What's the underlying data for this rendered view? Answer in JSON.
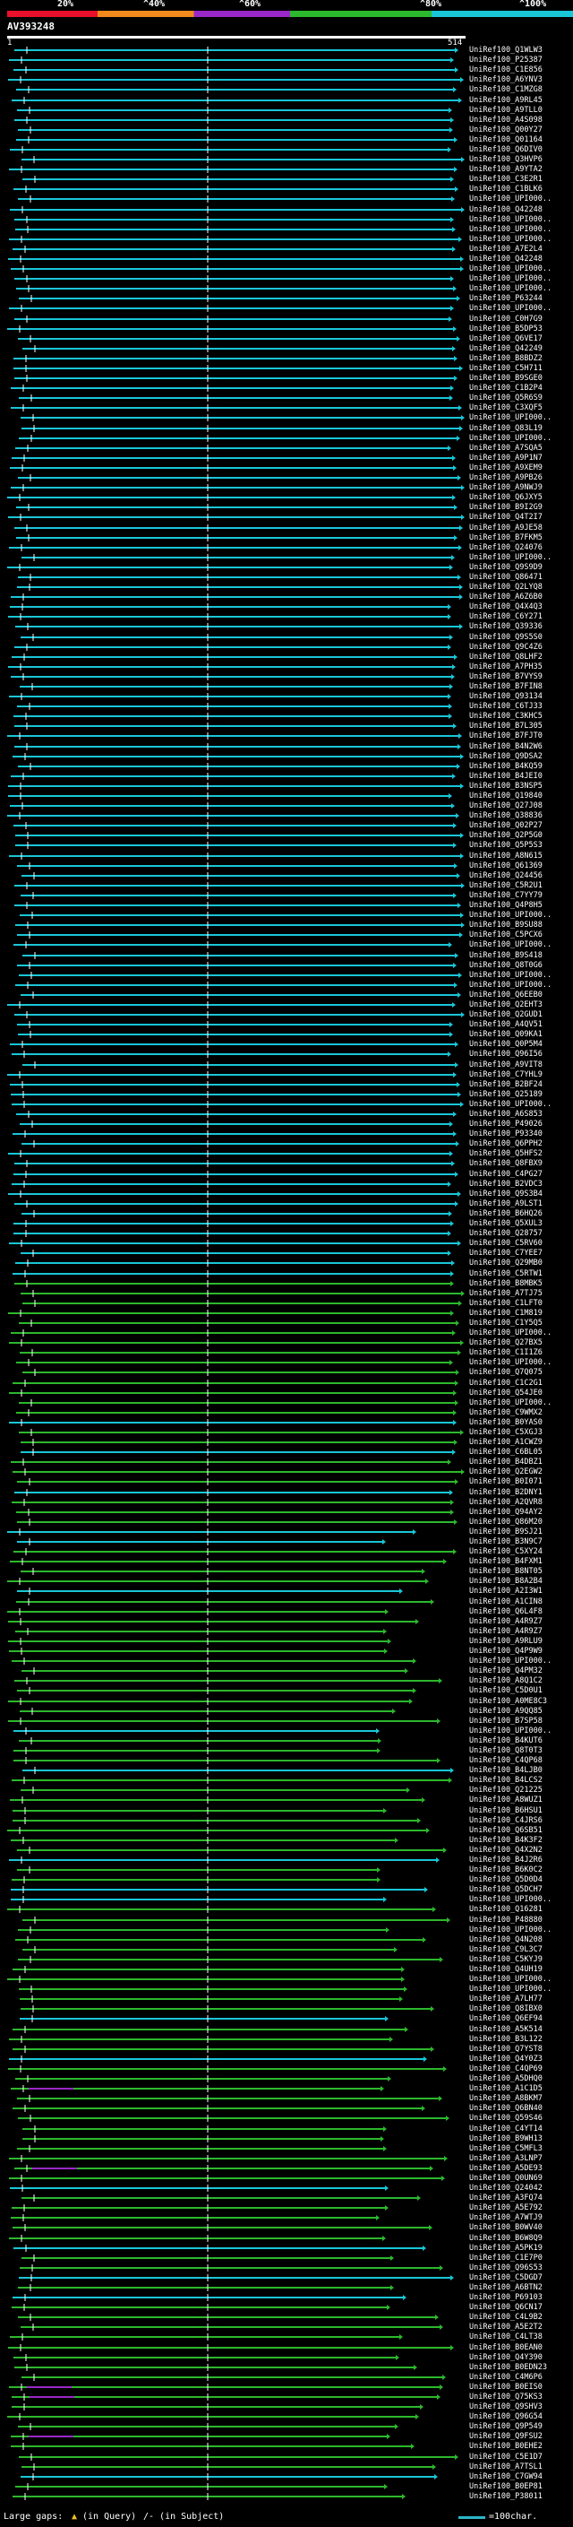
{
  "header": {
    "scale_labels": [
      "20%",
      "^40%",
      "^60%",
      "^80%",
      "^100%"
    ],
    "query_title": "AV393248",
    "ruler_start": "1",
    "ruler_end": "514",
    "colors": {
      "red": "#e8102a",
      "orange": "#f08a1c",
      "purple": "#9a28c8",
      "green": "#2cb82c",
      "cyan": "#19c6d8"
    }
  },
  "hits": [
    "UniRef100_Q1WLW3",
    "UniRef100_P25387",
    "UniRef100_C1E856",
    "UniRef100_A6YNV3",
    "UniRef100_C1MZG8",
    "UniRef100_A9RL45",
    "UniRef100_A9TLL0",
    "UniRef100_A4S098",
    "UniRef100_Q00Y27",
    "UniRef100_Q01164",
    "UniRef100_Q6DIV0",
    "UniRef100_Q3HVP6",
    "UniRef100_A9YTA2",
    "UniRef100_C3E2R1",
    "UniRef100_C1BLK6",
    "UniRef100_UPI000..",
    "UniRef100_Q42248",
    "UniRef100_UPI000..",
    "UniRef100_UPI000..",
    "UniRef100_UPI000..",
    "UniRef100_A7E2L4",
    "UniRef100_Q42248",
    "UniRef100_UPI000..",
    "UniRef100_UPI000..",
    "UniRef100_UPI000..",
    "UniRef100_P63244",
    "UniRef100_UPI000..",
    "UniRef100_C0H7G9",
    "UniRef100_B5DP53",
    "UniRef100_Q6VE17",
    "UniRef100_Q42249",
    "UniRef100_B8BDZ2",
    "UniRef100_C5H711",
    "UniRef100_B9SGE0",
    "UniRef100_C1B2P4",
    "UniRef100_Q5R6S9",
    "UniRef100_C3XQF5",
    "UniRef100_UPI000..",
    "UniRef100_Q83L19",
    "UniRef100_UPI000..",
    "UniRef100_A7SQA5",
    "UniRef100_A9P1N7",
    "UniRef100_A9XEM9",
    "UniRef100_A9PB26",
    "UniRef100_A9NWJ9",
    "UniRef100_Q6JXY5",
    "UniRef100_B9I2G9",
    "UniRef100_Q4T2I7",
    "UniRef100_A9JE58",
    "UniRef100_B7FKM5",
    "UniRef100_Q24076",
    "UniRef100_UPI000..",
    "UniRef100_Q9S9D9",
    "UniRef100_Q86471",
    "UniRef100_Q2LYQ8",
    "UniRef100_A6Z6B0",
    "UniRef100_Q4X4Q3",
    "UniRef100_C6Y271",
    "UniRef100_Q39336",
    "UniRef100_Q9S5S0",
    "UniRef100_Q9C4Z6",
    "UniRef100_Q8LHF2",
    "UniRef100_A7PH35",
    "UniRef100_B7VYS9",
    "UniRef100_B7FIN8",
    "UniRef100_Q93134",
    "UniRef100_C6TJ33",
    "UniRef100_C3KHC5",
    "UniRef100_B7L305",
    "UniRef100_B7FJT0",
    "UniRef100_B4N2W6",
    "UniRef100_Q9DSA2",
    "UniRef100_B4KQ59",
    "UniRef100_B4JEI0",
    "UniRef100_B3NSP5",
    "UniRef100_Q19840",
    "UniRef100_Q27J08",
    "UniRef100_Q38836",
    "UniRef100_Q02P27",
    "UniRef100_Q2P5G0",
    "UniRef100_Q5P5S3",
    "UniRef100_A8N615",
    "UniRef100_Q61369",
    "UniRef100_Q24456",
    "UniRef100_C5R2U1",
    "UniRef100_C7YY79",
    "UniRef100_Q4P8H5",
    "UniRef100_UPI000..",
    "UniRef100_B9SU88",
    "UniRef100_C5PCX6",
    "UniRef100_UPI000..",
    "UniRef100_B9S418",
    "UniRef100_Q8T0G6",
    "UniRef100_UPI000..",
    "UniRef100_UPI000..",
    "UniRef100_Q6EEB0",
    "UniRef100_Q2EHT3",
    "UniRef100_Q2GUD1",
    "UniRef100_A4QV51",
    "UniRef100_Q09KA1",
    "UniRef100_Q0P5M4",
    "UniRef100_Q96I56",
    "UniRef100_A9VIT8",
    "UniRef100_C7YHL9",
    "UniRef100_B2BF24",
    "UniRef100_Q25189",
    "UniRef100_UPI000..",
    "UniRef100_A6S853",
    "UniRef100_P49026",
    "UniRef100_P93340",
    "UniRef100_Q6PPH2",
    "UniRef100_Q5HFS2",
    "UniRef100_Q8FBX9",
    "UniRef100_C4PG27",
    "UniRef100_B2VDC3",
    "UniRef100_Q9S3B4",
    "UniRef100_A9LST1",
    "UniRef100_B6HQ26",
    "UniRef100_Q5XUL3",
    "UniRef100_Q28757",
    "UniRef100_C5RV60",
    "UniRef100_C7YEE7",
    "UniRef100_Q29MB0",
    "UniRef100_C5RTW1",
    "UniRef100_B8MBK5",
    "UniRef100_A7TJ75",
    "UniRef100_C1LFT0",
    "UniRef100_C1M819",
    "UniRef100_C1Y5Q5",
    "UniRef100_UPI000..",
    "UniRef100_Q27BX5",
    "UniRef100_C1I1Z6",
    "UniRef100_UPI000..",
    "UniRef100_Q7Q075",
    "UniRef100_C1C2G1",
    "UniRef100_Q54JE0",
    "UniRef100_UPI000..",
    "UniRef100_C9WMX2",
    "UniRef100_B0YAS0",
    "UniRef100_C5XGJ3",
    "UniRef100_A1CWZ9",
    "UniRef100_C6BL05",
    "UniRef100_B4DBZ1",
    "UniRef100_Q2EGW2",
    "UniRef100_B0I071",
    "UniRef100_B2DNY1",
    "UniRef100_A2QVR8",
    "UniRef100_Q94AY2",
    "UniRef100_Q86M20",
    "UniRef100_B9SJ21",
    "UniRef100_B3N9C7",
    "UniRef100_C5XY24",
    "UniRef100_B4FXM1",
    "UniRef100_B8NT05",
    "UniRef100_B8A2B4",
    "UniRef100_A2I3W1",
    "UniRef100_A1CIN8",
    "UniRef100_Q6L4F8",
    "UniRef100_A4R9Z7",
    "UniRef100_A4R9Z7",
    "UniRef100_A9RLU9",
    "UniRef100_Q4P9W9",
    "UniRef100_UPI000..",
    "UniRef100_Q4PM32",
    "UniRef100_A8Q1C2",
    "UniRef100_C5D0U1",
    "UniRef100_A0ME8C3",
    "UniRef100_A9QQ85",
    "UniRef100_B7SP58",
    "UniRef100_UPI000..",
    "UniRef100_B4KUT6",
    "UniRef100_Q8T0T3",
    "UniRef100_C4QP68",
    "UniRef100_B4LJB0",
    "UniRef100_B4LCS2",
    "UniRef100_Q21225",
    "UniRef100_A8WUZ1",
    "UniRef100_B6HSU1",
    "UniRef100_C4JRS6",
    "UniRef100_Q6SB51",
    "UniRef100_B4K3F2",
    "UniRef100_Q4X2N2",
    "UniRef100_B4J2R6",
    "UniRef100_B6K0C2",
    "UniRef100_Q5D0D4",
    "UniRef100_Q5DCH7",
    "UniRef100_UPI000..",
    "UniRef100_Q16281",
    "UniRef100_P48880",
    "UniRef100_UPI000..",
    "UniRef100_Q4N208",
    "UniRef100_C9L3C7",
    "UniRef100_C5KYJ9",
    "UniRef100_Q4UH19",
    "UniRef100_UPI000..",
    "UniRef100_UPI000..",
    "UniRef100_A7LH77",
    "UniRef100_Q8IBX0",
    "UniRef100_Q6EF94",
    "UniRef100_A5K514",
    "UniRef100_B3L122",
    "UniRef100_Q7YST8",
    "UniRef100_Q4Y0Z3",
    "UniRef100_C4QP69",
    "UniRef100_A5DHQ0",
    "UniRef100_A1C1D5",
    "UniRef100_A8BKM7",
    "UniRef100_Q6BN40",
    "UniRef100_Q59S46",
    "UniRef100_C4YT14",
    "UniRef100_B9WH13",
    "UniRef100_C5MFL3",
    "UniRef100_A3LNP7",
    "UniRef100_A5DE93",
    "UniRef100_Q0UN69",
    "UniRef100_Q24042",
    "UniRef100_A3FQ74",
    "UniRef100_A5E792",
    "UniRef100_A7WTJ9",
    "UniRef100_B0WV40",
    "UniRef100_B6W8Q9",
    "UniRef100_A5PK19",
    "UniRef100_C1E7P0",
    "UniRef100_Q96S53",
    "UniRef100_C5DGD7",
    "UniRef100_A6BTN2",
    "UniRef100_P69103",
    "UniRef100_Q6CN17",
    "UniRef100_C4L9B2",
    "UniRef100_A5E2T2",
    "UniRef100_C4LT38",
    "UniRef100_B0EAN0",
    "UniRef100_Q4Y390",
    "UniRef100_B0EDN23",
    "UniRef100_C4M6P6",
    "UniRef100_B0EIS0",
    "UniRef100_Q75KS3",
    "UniRef100_Q9SHV3",
    "UniRef100_Q96G54",
    "UniRef100_Q9P549",
    "UniRef100_Q9FSU2",
    "UniRef100_B0EHE2",
    "UniRef100_C5E1D7",
    "UniRef100_A7TSL1",
    "UniRef100_C7GW94",
    "UniRef100_B0EP81",
    "UniRef100_P38011"
  ],
  "footer": {
    "large_gaps_label": "Large gaps:",
    "in_query": "(in Query)",
    "in_subject": "/- (in Subject)",
    "scale_label": "=100char."
  }
}
